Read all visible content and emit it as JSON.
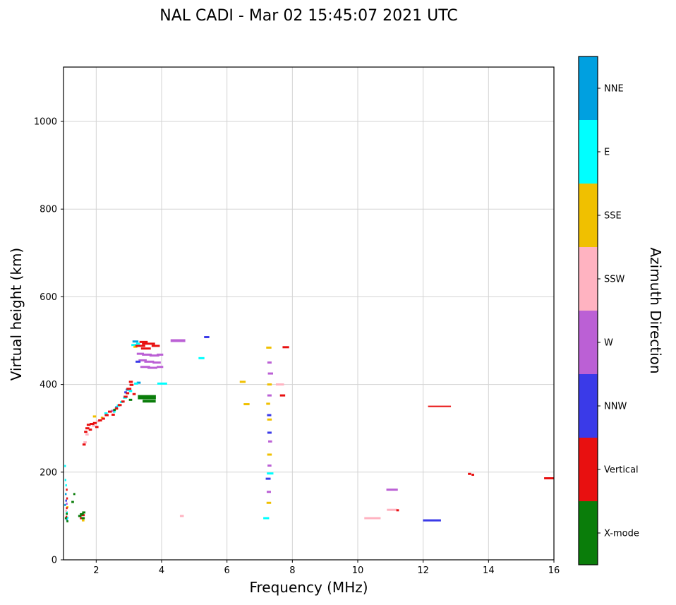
{
  "title": "NAL CADI - Mar 02 15:45:07 2021 UTC",
  "chart_data": {
    "type": "scatter",
    "title": "NAL CADI - Mar 02 15:45:07 2021 UTC",
    "xlabel": "Frequency (MHz)",
    "ylabel": "Virtual height (km)",
    "xlim": [
      1,
      16
    ],
    "ylim": [
      0,
      1124
    ],
    "xticks": [
      2,
      4,
      6,
      8,
      10,
      12,
      14,
      16
    ],
    "yticks": [
      0,
      200,
      400,
      600,
      800,
      1000
    ],
    "grid": true,
    "marker": "hline",
    "grid_color": "#d3d3d3",
    "legend": {
      "title": "Azimuth Direction",
      "position": "right",
      "entries": [
        {
          "label": "NNE",
          "color": "#00a0e0"
        },
        {
          "label": "E",
          "color": "#00ffff"
        },
        {
          "label": "SSE",
          "color": "#f0c000"
        },
        {
          "label": "SSW",
          "color": "#ffb3c1"
        },
        {
          "label": "W",
          "color": "#bb60d5"
        },
        {
          "label": "NNW",
          "color": "#3a3ae8"
        },
        {
          "label": "Vertical",
          "color": "#e81010"
        },
        {
          "label": "X-mode",
          "color": "#0a7d0a"
        }
      ]
    },
    "series": [
      {
        "name": "NNE",
        "color": "#00a0e0",
        "points": [
          [
            1.05,
            125,
            0.05
          ],
          [
            1.07,
            150,
            0.05
          ],
          [
            1.1,
            92,
            0.05
          ],
          [
            2.62,
            348,
            0.08
          ],
          [
            2.95,
            388,
            0.1
          ],
          [
            3.2,
            498,
            0.18
          ],
          [
            3.3,
            404,
            0.12
          ]
        ]
      },
      {
        "name": "E",
        "color": "#00ffff",
        "points": [
          [
            1.05,
            214,
            0.05
          ],
          [
            1.06,
            182,
            0.05
          ],
          [
            1.08,
            170,
            0.05
          ],
          [
            1.1,
            108,
            0.06
          ],
          [
            1.12,
            96,
            0.06
          ],
          [
            2.3,
            334,
            0.1
          ],
          [
            2.55,
            338,
            0.08
          ],
          [
            2.68,
            352,
            0.1
          ],
          [
            2.78,
            360,
            0.1
          ],
          [
            2.88,
            370,
            0.12
          ],
          [
            2.95,
            380,
            0.1
          ],
          [
            3.05,
            385,
            0.1
          ],
          [
            3.15,
            490,
            0.15
          ],
          [
            3.28,
            493,
            0.12
          ],
          [
            3.22,
            402,
            0.12
          ],
          [
            4.02,
            402,
            0.3
          ],
          [
            5.22,
            460,
            0.18
          ],
          [
            7.2,
            95,
            0.18
          ],
          [
            7.32,
            197,
            0.2
          ]
        ]
      },
      {
        "name": "SSE",
        "color": "#f0c000",
        "points": [
          [
            1.12,
            120,
            0.06
          ],
          [
            1.6,
            90,
            0.08
          ],
          [
            1.95,
            327,
            0.1
          ],
          [
            2.18,
            324,
            0.08
          ],
          [
            3.2,
            486,
            0.12
          ],
          [
            6.48,
            406,
            0.18
          ],
          [
            6.6,
            355,
            0.18
          ],
          [
            7.28,
            130,
            0.14
          ],
          [
            7.3,
            240,
            0.14
          ],
          [
            7.3,
            320,
            0.14
          ],
          [
            7.26,
            356,
            0.12
          ],
          [
            7.3,
            400,
            0.14
          ],
          [
            7.28,
            484,
            0.16
          ]
        ]
      },
      {
        "name": "SSW",
        "color": "#ffb3c1",
        "points": [
          [
            1.08,
            112,
            0.05
          ],
          [
            1.66,
            268,
            0.1
          ],
          [
            1.72,
            286,
            0.1
          ],
          [
            1.92,
            306,
            0.1
          ],
          [
            2.06,
            316,
            0.09
          ],
          [
            4.62,
            100,
            0.12
          ],
          [
            7.62,
            400,
            0.25
          ],
          [
            10.45,
            95,
            0.5,
            3
          ],
          [
            11.05,
            114,
            0.32,
            3
          ]
        ]
      },
      {
        "name": "W",
        "color": "#bb60d5",
        "points": [
          [
            1.1,
            128,
            0.05
          ],
          [
            2.5,
            340,
            0.08
          ],
          [
            3.35,
            470,
            0.22
          ],
          [
            3.55,
            468,
            0.3
          ],
          [
            3.78,
            466,
            0.3
          ],
          [
            3.95,
            468,
            0.2
          ],
          [
            3.42,
            455,
            0.25
          ],
          [
            3.62,
            452,
            0.3
          ],
          [
            3.85,
            450,
            0.25
          ],
          [
            3.5,
            440,
            0.3
          ],
          [
            3.72,
            438,
            0.3
          ],
          [
            3.95,
            440,
            0.2
          ],
          [
            4.5,
            500,
            0.45,
            4
          ],
          [
            7.28,
            155,
            0.13
          ],
          [
            7.3,
            215,
            0.12
          ],
          [
            7.32,
            270,
            0.12
          ],
          [
            7.3,
            375,
            0.13
          ],
          [
            7.33,
            425,
            0.16
          ],
          [
            7.3,
            450,
            0.13
          ],
          [
            11.05,
            160,
            0.35,
            3
          ]
        ]
      },
      {
        "name": "NNW",
        "color": "#3a3ae8",
        "points": [
          [
            1.08,
            135,
            0.05
          ],
          [
            2.9,
            382,
            0.08
          ],
          [
            3.28,
            452,
            0.15
          ],
          [
            5.38,
            508,
            0.16
          ],
          [
            7.26,
            185,
            0.15
          ],
          [
            7.3,
            290,
            0.13
          ],
          [
            7.29,
            330,
            0.13
          ],
          [
            12.27,
            90,
            0.55,
            3
          ]
        ]
      },
      {
        "name": "Vertical",
        "color": "#e81010",
        "points": [
          [
            1.1,
            118,
            0.05
          ],
          [
            1.11,
            140,
            0.05
          ],
          [
            1.1,
            160,
            0.05
          ],
          [
            1.09,
            98,
            0.05
          ],
          [
            1.55,
            95,
            0.1
          ],
          [
            1.6,
            102,
            0.1
          ],
          [
            1.63,
            263,
            0.1
          ],
          [
            1.68,
            292,
            0.1
          ],
          [
            1.73,
            300,
            0.12
          ],
          [
            1.77,
            308,
            0.12
          ],
          [
            1.82,
            297,
            0.1
          ],
          [
            1.87,
            310,
            0.14
          ],
          [
            1.96,
            312,
            0.12
          ],
          [
            2.02,
            303,
            0.1
          ],
          [
            2.12,
            318,
            0.12
          ],
          [
            2.22,
            322,
            0.1
          ],
          [
            2.32,
            330,
            0.12
          ],
          [
            2.42,
            338,
            0.12
          ],
          [
            2.52,
            331,
            0.1
          ],
          [
            2.62,
            345,
            0.1
          ],
          [
            2.72,
            353,
            0.12
          ],
          [
            2.82,
            361,
            0.1
          ],
          [
            2.9,
            372,
            0.12
          ],
          [
            2.96,
            380,
            0.1
          ],
          [
            3.0,
            390,
            0.15
          ],
          [
            3.08,
            399,
            0.12
          ],
          [
            3.06,
            406,
            0.12
          ],
          [
            3.16,
            378,
            0.1
          ],
          [
            3.35,
            488,
            0.3
          ],
          [
            3.45,
            497,
            0.25
          ],
          [
            3.52,
            482,
            0.3
          ],
          [
            3.6,
            493,
            0.4
          ],
          [
            3.82,
            488,
            0.25
          ],
          [
            7.7,
            375,
            0.16
          ],
          [
            7.8,
            485,
            0.2
          ],
          [
            11.22,
            113,
            0.08
          ],
          [
            12.5,
            350,
            0.7,
            2
          ],
          [
            13.42,
            196,
            0.1
          ],
          [
            13.52,
            194,
            0.08
          ],
          [
            15.85,
            186,
            0.3
          ]
        ]
      },
      {
        "name": "X-mode",
        "color": "#0a7d0a",
        "points": [
          [
            1.07,
            95,
            0.06
          ],
          [
            1.1,
            105,
            0.06
          ],
          [
            1.12,
            88,
            0.06
          ],
          [
            1.28,
            132,
            0.08
          ],
          [
            1.33,
            150,
            0.06
          ],
          [
            1.5,
            100,
            0.1
          ],
          [
            1.56,
            104,
            0.12
          ],
          [
            1.6,
            95,
            0.1
          ],
          [
            1.62,
            108,
            0.1
          ],
          [
            2.56,
            342,
            0.08
          ],
          [
            3.05,
            365,
            0.1
          ],
          [
            3.55,
            371,
            0.55,
            6
          ],
          [
            3.62,
            362,
            0.4,
            4
          ]
        ]
      }
    ]
  }
}
